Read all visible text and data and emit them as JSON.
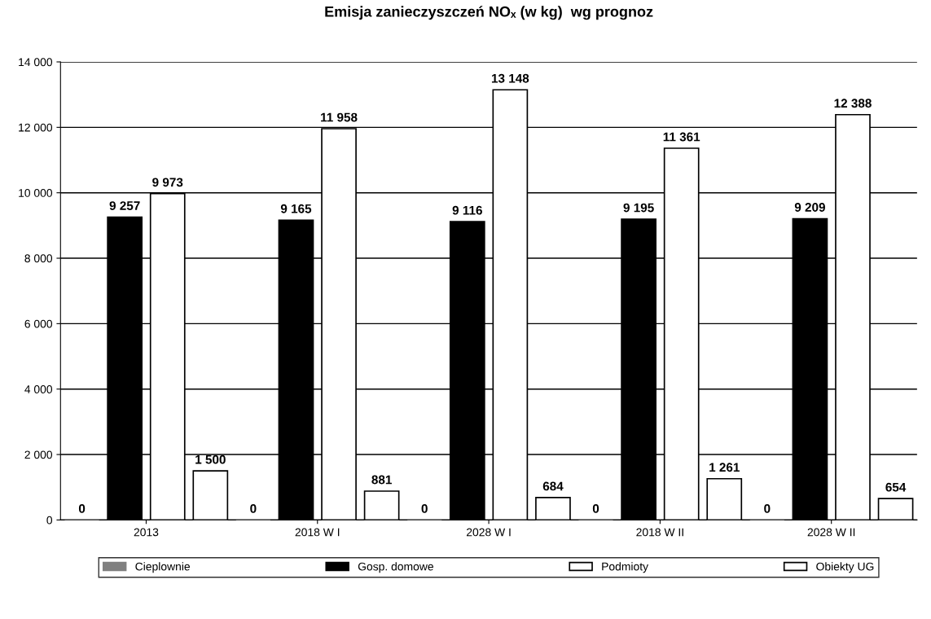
{
  "chart_data": {
    "type": "bar",
    "title": "Emisja zanieczyszczeń NOₓ (w kg)  wg prognoz",
    "categories": [
      "2013",
      "2018 W I",
      "2028 W I",
      "2018 W II",
      "2028 W II"
    ],
    "series": [
      {
        "name": "Cieplownie",
        "color": "#808080",
        "values": [
          0,
          0,
          0,
          0,
          0
        ],
        "value_labels": [
          "0",
          "0",
          "0",
          "0",
          "0"
        ]
      },
      {
        "name": "Gosp. domowe",
        "color": "#000000",
        "values": [
          9257,
          9165,
          9116,
          9195,
          9209
        ],
        "value_labels": [
          "9 257",
          "9 165",
          "9 116",
          "9 195",
          "9 209"
        ]
      },
      {
        "name": "Podmioty",
        "color": "#ffffff",
        "values": [
          9973,
          11958,
          13148,
          11361,
          12388
        ],
        "value_labels": [
          "9 973",
          "11 958",
          "13 148",
          "11 361",
          "12 388"
        ]
      },
      {
        "name": "Obiekty UG",
        "color": "#ffffff",
        "values": [
          1500,
          881,
          684,
          1261,
          654
        ],
        "value_labels": [
          "1 500",
          "881",
          "684",
          "1 261",
          "654"
        ]
      }
    ],
    "ylim": [
      0,
      14000
    ],
    "yticks": [
      0,
      {
        "value": 2000,
        "label": "2 000"
      },
      {
        "value": 4000,
        "label": "4 000"
      },
      {
        "value": 6000,
        "label": "6 000"
      },
      {
        "value": 8000,
        "label": "8 000"
      },
      {
        "value": 10000,
        "label": "10 000"
      },
      {
        "value": 12000,
        "label": "12 000"
      },
      {
        "value": 14000,
        "label": "14 000"
      }
    ],
    "grid": "y",
    "legend": "bottom"
  }
}
